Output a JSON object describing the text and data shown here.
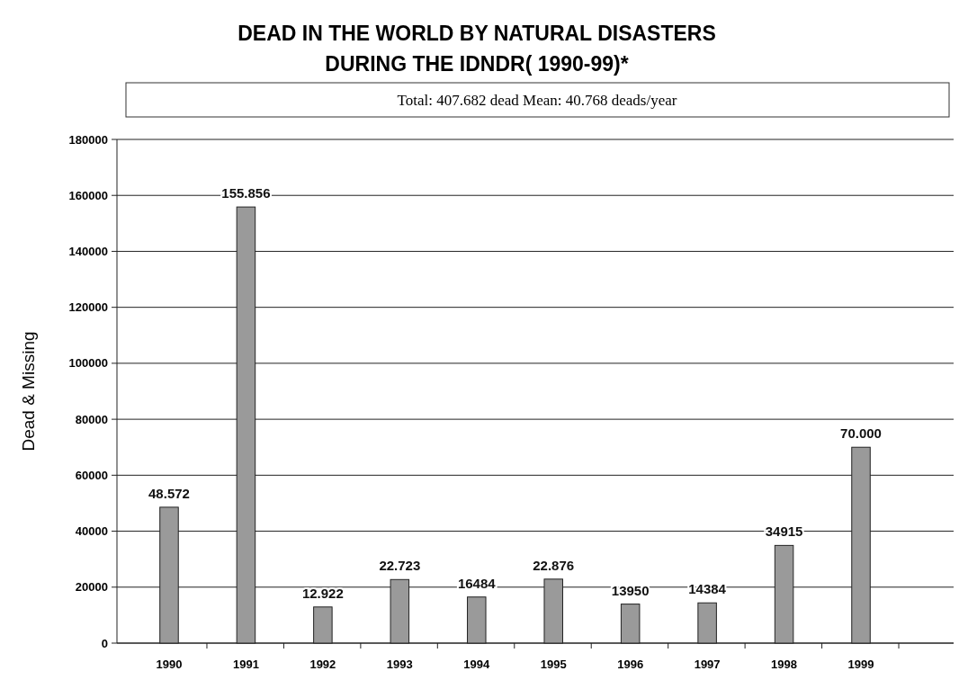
{
  "chart_data": {
    "type": "bar",
    "title": "DEAD IN THE WORLD  BY NATURAL DISASTERS\nDURING THE IDNDR( 1990-99)*",
    "ylabel": "Dead & Missing",
    "annotations": [
      "Total: 407.682 dead  Mean: 40.768 deads/year"
    ],
    "categories": [
      "1990",
      "1991",
      "1992",
      "1993",
      "1994",
      "1995",
      "1996",
      "1997",
      "1998",
      "1999"
    ],
    "values": [
      48572,
      155856,
      12922,
      22723,
      16484,
      22876,
      13950,
      14384,
      34915,
      70000
    ],
    "value_labels": [
      "48.572",
      "155.856",
      "12.922",
      "22.723",
      "16484",
      "22.876",
      "13950",
      "14384",
      "34915",
      "70.000"
    ],
    "color": "#9a9a9a",
    "ylim": [
      0,
      180000
    ],
    "yticks": [
      0,
      20000,
      40000,
      60000,
      80000,
      100000,
      120000,
      140000,
      160000,
      180000
    ],
    "grid": "y"
  }
}
